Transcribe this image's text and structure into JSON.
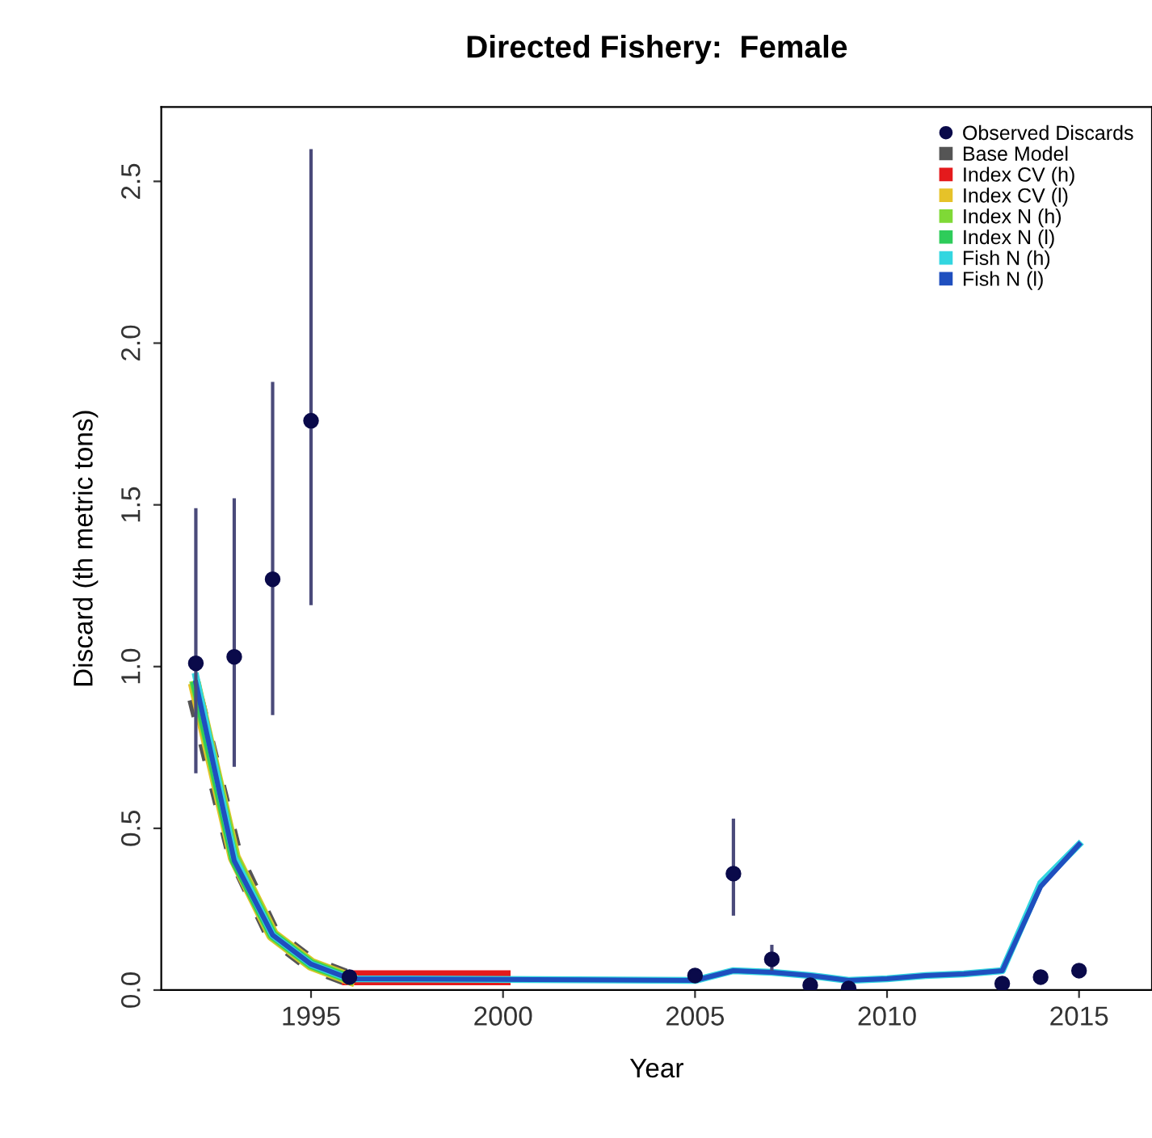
{
  "chart_data": {
    "type": "line",
    "title": "Directed Fishery:  Female",
    "xlabel": "Year",
    "ylabel": "Discard (th metric tons)",
    "xlim": [
      1991.1,
      2016.9
    ],
    "ylim": [
      0,
      2.73
    ],
    "xticks": [
      1995,
      2000,
      2005,
      2010,
      2015
    ],
    "yticks": [
      {
        "value": 0,
        "label": "0.0"
      },
      {
        "value": 0.5,
        "label": "0.5"
      },
      {
        "value": 1,
        "label": "1.0"
      },
      {
        "value": 1.5,
        "label": "1.5"
      },
      {
        "value": 2,
        "label": "2.0"
      },
      {
        "value": 2.5,
        "label": "2.5"
      }
    ],
    "grid": false,
    "legend": "top right",
    "series": [
      {
        "name": "Observed Discards",
        "type": "scatter",
        "color": "#0a0a4a",
        "marker": "circle",
        "x": [
          1992,
          1993,
          1994,
          1995,
          1996,
          2005,
          2006,
          2007,
          2008,
          2009,
          2013,
          2014,
          2015
        ],
        "values": [
          1.01,
          1.03,
          1.27,
          1.76,
          0.04,
          0.045,
          0.36,
          0.095,
          0.015,
          0.005,
          0.02,
          0.04,
          0.06
        ],
        "errors": [
          [
            0.67,
            1.49
          ],
          [
            0.69,
            1.52
          ],
          [
            0.85,
            1.88
          ],
          [
            1.19,
            2.6
          ],
          null,
          null,
          [
            0.23,
            0.53
          ],
          [
            0.06,
            0.14
          ],
          null,
          null,
          null,
          null,
          [
            0.04,
            0.08
          ]
        ]
      },
      {
        "name": "Base Model",
        "color": "#555555",
        "line_style": "dotted",
        "x": [
          1992,
          1993,
          1994,
          1995,
          1996
        ],
        "values": [
          0.9,
          0.42,
          0.17,
          0.08,
          0.035
        ]
      },
      {
        "name": "Index CV (h)",
        "color": "#e41a1c",
        "line_style": "solid",
        "x": [
          1996,
          1997,
          1998,
          1999,
          2000
        ],
        "values": [
          0.038,
          0.038,
          0.038,
          0.038,
          0.038
        ]
      },
      {
        "name": "Index CV (l)",
        "color": "#e6c229",
        "line_style": "solid",
        "x": [
          1992,
          1993,
          1994,
          1995,
          1996
        ],
        "values": [
          0.93,
          0.41,
          0.17,
          0.08,
          0.035
        ]
      },
      {
        "name": "Index N (h)",
        "color": "#7fd936",
        "line_style": "solid",
        "x": [
          1992,
          1993,
          1994,
          1995,
          1996
        ],
        "values": [
          0.94,
          0.41,
          0.17,
          0.08,
          0.035
        ]
      },
      {
        "name": "Index N (l)",
        "color": "#2ecc5a",
        "line_style": "solid",
        "x": [
          1992,
          1993,
          1994,
          1995,
          1996
        ],
        "values": [
          0.94,
          0.4,
          0.17,
          0.08,
          0.035
        ]
      },
      {
        "name": "Fish N (h)",
        "color": "#33d6e0",
        "line_style": "solid",
        "x": [
          1992,
          1993,
          1994,
          1995,
          1996,
          2005,
          2006,
          2007,
          2008,
          2009,
          2010,
          2011,
          2012,
          2013,
          2014,
          2015
        ],
        "values": [
          0.97,
          0.41,
          0.17,
          0.08,
          0.035,
          0.03,
          0.06,
          0.055,
          0.045,
          0.03,
          0.035,
          0.045,
          0.05,
          0.06,
          0.33,
          0.45
        ]
      },
      {
        "name": "Fish N (l)",
        "color": "#1f4fbf",
        "line_style": "solid",
        "x": [
          1992,
          1993,
          1994,
          1995,
          1996,
          2005,
          2006,
          2007,
          2008,
          2009,
          2010,
          2011,
          2012,
          2013,
          2014,
          2015
        ],
        "values": [
          0.95,
          0.4,
          0.17,
          0.08,
          0.035,
          0.03,
          0.06,
          0.055,
          0.045,
          0.03,
          0.035,
          0.045,
          0.05,
          0.06,
          0.32,
          0.45
        ]
      }
    ]
  }
}
